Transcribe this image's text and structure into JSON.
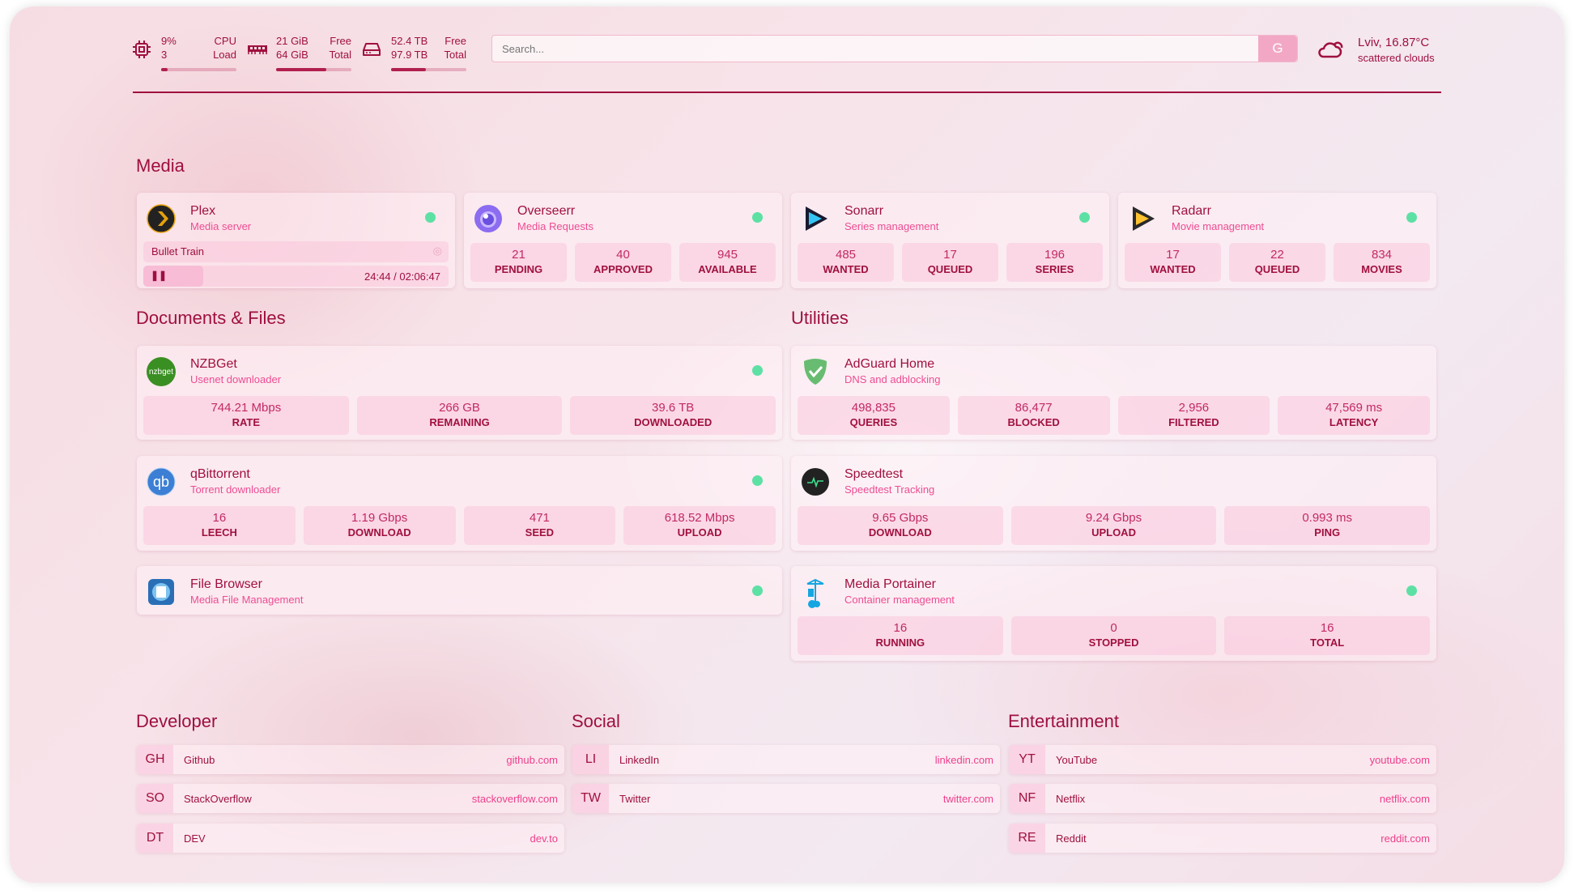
{
  "header": {
    "cpu": {
      "icon": "cpu-icon",
      "load": "9%",
      "cores": "3",
      "label1": "CPU",
      "label2": "Load",
      "usage": 0.09
    },
    "memory": {
      "icon": "memory-icon",
      "free": "21 GiB",
      "total": "64 GiB",
      "label1": "Free",
      "label2": "Total",
      "usage": 0.67
    },
    "disk": {
      "icon": "disk-icon",
      "free": "52.4 TB",
      "total": "97.9 TB",
      "label1": "Free",
      "label2": "Total",
      "usage": 0.46
    },
    "search": {
      "placeholder": "Search...",
      "button": "G"
    },
    "weather": {
      "icon": "cloud-sun-icon",
      "location": "Lviv, 16.87°C",
      "condition": "scattered clouds"
    }
  },
  "colors": {
    "primary": "#9e0f40",
    "accent": "#ee4c93",
    "status_online": "#5de0a4"
  },
  "media": {
    "title": "Media",
    "cards": [
      {
        "name": "Plex",
        "desc": "Media server",
        "icon": "plex-icon",
        "status": "online",
        "now_playing": {
          "title": "Bullet Train",
          "time": "24:44 / 02:06:47",
          "progress": 0.195,
          "state": "paused"
        }
      },
      {
        "name": "Overseerr",
        "desc": "Media Requests",
        "icon": "overseerr-icon",
        "status": "online",
        "stats": [
          {
            "v": "21",
            "l": "PENDING"
          },
          {
            "v": "40",
            "l": "APPROVED"
          },
          {
            "v": "945",
            "l": "AVAILABLE"
          }
        ]
      },
      {
        "name": "Sonarr",
        "desc": "Series management",
        "icon": "sonarr-icon",
        "status": "online",
        "stats": [
          {
            "v": "485",
            "l": "WANTED"
          },
          {
            "v": "17",
            "l": "QUEUED"
          },
          {
            "v": "196",
            "l": "SERIES"
          }
        ]
      },
      {
        "name": "Radarr",
        "desc": "Movie management",
        "icon": "radarr-icon",
        "status": "online",
        "stats": [
          {
            "v": "17",
            "l": "WANTED"
          },
          {
            "v": "22",
            "l": "QUEUED"
          },
          {
            "v": "834",
            "l": "MOVIES"
          }
        ]
      }
    ]
  },
  "documents": {
    "title": "Documents & Files",
    "cards": [
      {
        "name": "NZBGet",
        "desc": "Usenet downloader",
        "icon": "nzbget-icon",
        "logo_text": "nzbget",
        "status": "online",
        "stats": [
          {
            "v": "744.21 Mbps",
            "l": "RATE"
          },
          {
            "v": "266 GB",
            "l": "REMAINING"
          },
          {
            "v": "39.6 TB",
            "l": "DOWNLOADED"
          }
        ]
      },
      {
        "name": "qBittorrent",
        "desc": "Torrent downloader",
        "icon": "qbittorrent-icon",
        "logo_text": "qb",
        "status": "online",
        "stats": [
          {
            "v": "16",
            "l": "LEECH"
          },
          {
            "v": "1.19 Gbps",
            "l": "DOWNLOAD"
          },
          {
            "v": "471",
            "l": "SEED"
          },
          {
            "v": "618.52 Mbps",
            "l": "UPLOAD"
          }
        ]
      },
      {
        "name": "File Browser",
        "desc": "Media File Management",
        "icon": "filebrowser-icon",
        "status": "online"
      }
    ]
  },
  "utilities": {
    "title": "Utilities",
    "cards": [
      {
        "name": "AdGuard Home",
        "desc": "DNS and adblocking",
        "icon": "adguard-icon",
        "stats": [
          {
            "v": "498,835",
            "l": "QUERIES"
          },
          {
            "v": "86,477",
            "l": "BLOCKED"
          },
          {
            "v": "2,956",
            "l": "FILTERED"
          },
          {
            "v": "47,569 ms",
            "l": "LATENCY"
          }
        ]
      },
      {
        "name": "Speedtest",
        "desc": "Speedtest Tracking",
        "icon": "speedtest-icon",
        "stats": [
          {
            "v": "9.65 Gbps",
            "l": "DOWNLOAD"
          },
          {
            "v": "9.24 Gbps",
            "l": "UPLOAD"
          },
          {
            "v": "0.993 ms",
            "l": "PING"
          }
        ]
      },
      {
        "name": "Media Portainer",
        "desc": "Container management",
        "icon": "portainer-icon",
        "status": "online",
        "stats": [
          {
            "v": "16",
            "l": "RUNNING"
          },
          {
            "v": "0",
            "l": "STOPPED"
          },
          {
            "v": "16",
            "l": "TOTAL"
          }
        ]
      }
    ]
  },
  "bookmarks": [
    {
      "title": "Developer",
      "items": [
        {
          "abbr": "GH",
          "name": "Github",
          "url": "github.com"
        },
        {
          "abbr": "SO",
          "name": "StackOverflow",
          "url": "stackoverflow.com"
        },
        {
          "abbr": "DT",
          "name": "DEV",
          "url": "dev.to"
        }
      ]
    },
    {
      "title": "Social",
      "items": [
        {
          "abbr": "LI",
          "name": "LinkedIn",
          "url": "linkedin.com"
        },
        {
          "abbr": "TW",
          "name": "Twitter",
          "url": "twitter.com"
        }
      ]
    },
    {
      "title": "Entertainment",
      "items": [
        {
          "abbr": "YT",
          "name": "YouTube",
          "url": "youtube.com"
        },
        {
          "abbr": "NF",
          "name": "Netflix",
          "url": "netflix.com"
        },
        {
          "abbr": "RE",
          "name": "Reddit",
          "url": "reddit.com"
        }
      ]
    }
  ]
}
